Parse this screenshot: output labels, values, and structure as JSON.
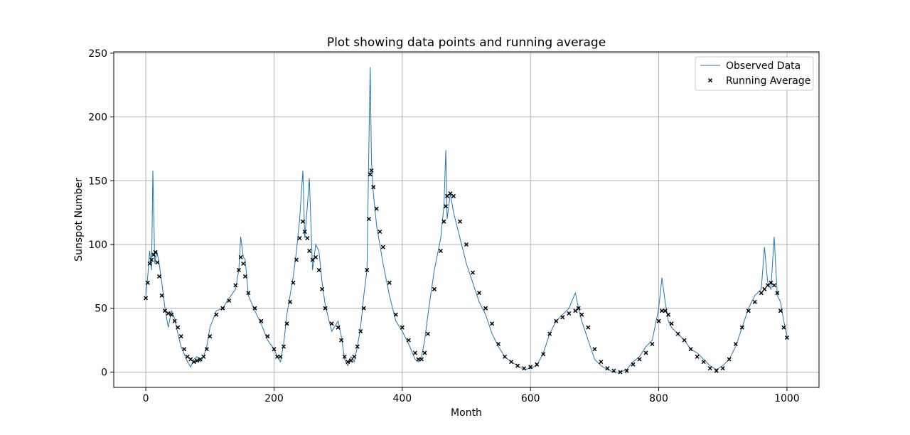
{
  "chart_data": {
    "type": "line",
    "title": "Plot showing data points and running average",
    "xlabel": "Month",
    "ylabel": "Sunspot Number",
    "xlim": [
      -50,
      1050
    ],
    "ylim": [
      -12,
      251
    ],
    "xticks": [
      0,
      200,
      400,
      600,
      800,
      1000
    ],
    "yticks": [
      0,
      50,
      100,
      150,
      200,
      250
    ],
    "grid": true,
    "legend_position": "top-right",
    "series": [
      {
        "name": "Observed Data",
        "style": "line",
        "color": "#1f77b4",
        "x": [
          0,
          3,
          6,
          9,
          11,
          14,
          17,
          20,
          25,
          30,
          35,
          40,
          45,
          50,
          55,
          60,
          65,
          70,
          75,
          80,
          85,
          90,
          95,
          100,
          110,
          120,
          130,
          140,
          145,
          148,
          152,
          155,
          160,
          170,
          180,
          190,
          200,
          205,
          210,
          215,
          220,
          225,
          230,
          235,
          240,
          245,
          248,
          252,
          255,
          260,
          265,
          270,
          275,
          280,
          290,
          300,
          305,
          310,
          315,
          320,
          325,
          330,
          335,
          340,
          345,
          348,
          350,
          352,
          355,
          360,
          365,
          370,
          380,
          390,
          400,
          410,
          420,
          425,
          430,
          435,
          440,
          450,
          460,
          465,
          468,
          470,
          475,
          480,
          490,
          500,
          510,
          520,
          530,
          540,
          550,
          560,
          570,
          580,
          590,
          600,
          610,
          620,
          630,
          640,
          650,
          660,
          670,
          675,
          680,
          690,
          700,
          710,
          720,
          730,
          740,
          750,
          760,
          770,
          780,
          790,
          800,
          805,
          810,
          815,
          820,
          830,
          840,
          850,
          860,
          870,
          880,
          890,
          900,
          910,
          920,
          930,
          940,
          950,
          960,
          965,
          970,
          975,
          980,
          985,
          990,
          995,
          1000
        ],
        "y": [
          60,
          75,
          95,
          80,
          158,
          85,
          95,
          88,
          70,
          50,
          35,
          48,
          42,
          30,
          20,
          14,
          8,
          4,
          10,
          12,
          8,
          12,
          20,
          35,
          48,
          50,
          58,
          65,
          80,
          106,
          90,
          88,
          60,
          48,
          38,
          25,
          18,
          12,
          8,
          22,
          45,
          60,
          75,
          95,
          120,
          158,
          105,
          130,
          152,
          80,
          100,
          95,
          70,
          52,
          32,
          40,
          28,
          10,
          5,
          12,
          8,
          20,
          35,
          60,
          80,
          178,
          239,
          165,
          140,
          115,
          100,
          85,
          60,
          40,
          32,
          22,
          10,
          8,
          12,
          25,
          45,
          80,
          105,
          130,
          174,
          120,
          140,
          125,
          105,
          85,
          70,
          55,
          45,
          30,
          20,
          12,
          8,
          5,
          2,
          3,
          5,
          15,
          30,
          40,
          45,
          50,
          62,
          50,
          40,
          25,
          10,
          5,
          2,
          0,
          0,
          2,
          8,
          12,
          20,
          25,
          50,
          74,
          55,
          40,
          35,
          30,
          25,
          18,
          15,
          10,
          5,
          2,
          5,
          10,
          20,
          35,
          50,
          60,
          65,
          98,
          70,
          65,
          106,
          60,
          55,
          40,
          28
        ]
      },
      {
        "name": "Running Average",
        "style": "scatter",
        "marker": "x",
        "color": "#000000",
        "x": [
          0,
          3,
          6,
          9,
          12,
          15,
          18,
          21,
          25,
          30,
          35,
          40,
          45,
          50,
          55,
          60,
          65,
          70,
          75,
          80,
          85,
          90,
          95,
          100,
          110,
          120,
          130,
          140,
          145,
          148,
          152,
          155,
          160,
          170,
          180,
          190,
          200,
          205,
          210,
          215,
          220,
          225,
          230,
          235,
          240,
          245,
          248,
          252,
          255,
          260,
          265,
          270,
          275,
          280,
          290,
          300,
          305,
          310,
          315,
          320,
          325,
          330,
          335,
          340,
          345,
          348,
          350,
          352,
          355,
          360,
          365,
          370,
          380,
          390,
          400,
          410,
          420,
          425,
          430,
          435,
          440,
          450,
          460,
          465,
          468,
          470,
          475,
          480,
          490,
          500,
          510,
          520,
          530,
          540,
          550,
          560,
          570,
          580,
          590,
          600,
          610,
          620,
          630,
          640,
          650,
          660,
          670,
          675,
          680,
          690,
          700,
          710,
          720,
          730,
          740,
          750,
          760,
          770,
          780,
          790,
          800,
          805,
          810,
          815,
          820,
          830,
          840,
          850,
          860,
          870,
          880,
          890,
          900,
          910,
          920,
          930,
          940,
          950,
          960,
          965,
          970,
          975,
          980,
          985,
          990,
          995,
          1000
        ],
        "y": [
          58,
          70,
          85,
          88,
          92,
          94,
          86,
          75,
          60,
          48,
          46,
          45,
          40,
          35,
          28,
          18,
          12,
          10,
          8,
          9,
          10,
          12,
          18,
          28,
          45,
          50,
          56,
          68,
          80,
          90,
          85,
          75,
          62,
          50,
          40,
          28,
          18,
          12,
          12,
          20,
          38,
          55,
          70,
          88,
          105,
          118,
          110,
          105,
          95,
          88,
          90,
          80,
          65,
          50,
          38,
          35,
          25,
          12,
          8,
          9,
          12,
          20,
          32,
          50,
          80,
          120,
          155,
          158,
          145,
          128,
          110,
          98,
          70,
          45,
          35,
          25,
          15,
          10,
          10,
          15,
          30,
          65,
          95,
          118,
          130,
          138,
          140,
          138,
          118,
          100,
          78,
          62,
          50,
          38,
          22,
          12,
          8,
          5,
          3,
          4,
          6,
          14,
          30,
          40,
          43,
          46,
          48,
          50,
          45,
          35,
          18,
          8,
          3,
          1,
          0,
          1,
          6,
          10,
          15,
          22,
          40,
          48,
          48,
          45,
          38,
          30,
          25,
          18,
          12,
          8,
          3,
          1,
          3,
          10,
          22,
          35,
          48,
          55,
          62,
          65,
          68,
          70,
          68,
          62,
          48,
          35,
          27
        ]
      }
    ]
  }
}
